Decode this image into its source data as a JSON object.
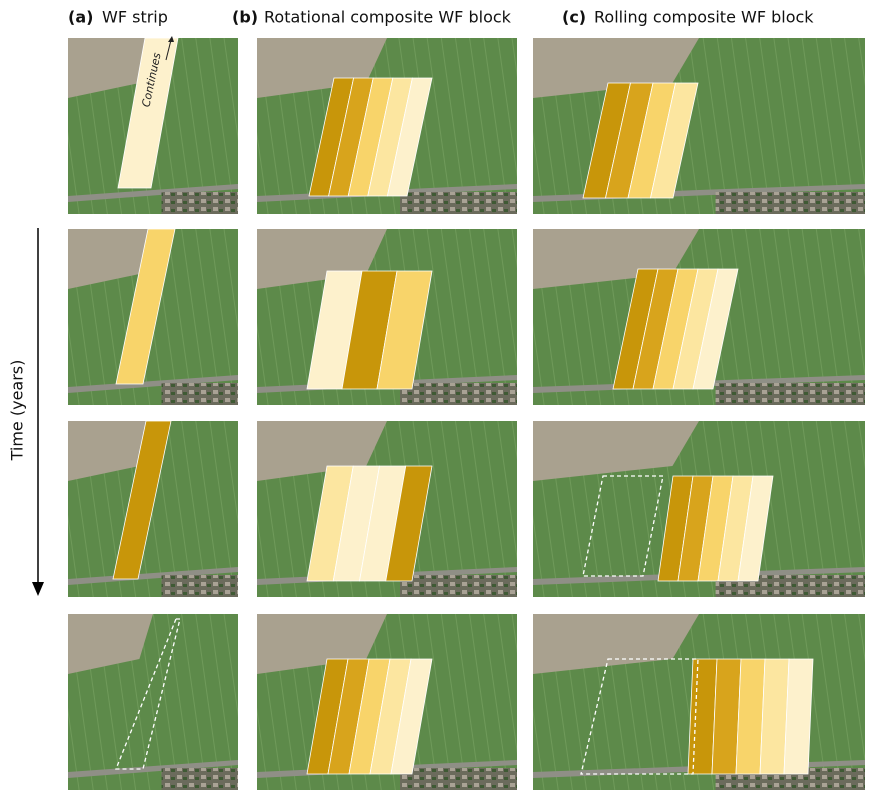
{
  "panels": [
    {
      "letter": "(a)",
      "title": "WF strip"
    },
    {
      "letter": "(b)",
      "title": "Rotational composite WF block"
    },
    {
      "letter": "(c)",
      "title": "Rolling composite WF block"
    }
  ],
  "annotation": "Continues",
  "axis_label": "Time (years)"
}
